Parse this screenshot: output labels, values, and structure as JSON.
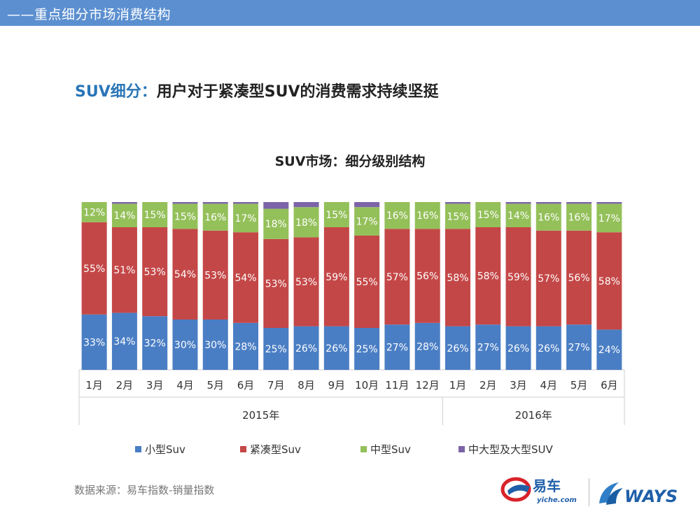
{
  "header": {
    "title": "——重点细分市场消费结构"
  },
  "slide": {
    "title_accent": "SUV细分：",
    "title_rest": "用户对于紧凑型SUV的消费需求持续坚挺"
  },
  "source_note": "数据来源：易车指数-销量指数",
  "logos": {
    "yiche_name": "易车",
    "yiche_domain": "yiche.com",
    "ways_name": "WAYS"
  },
  "chart_data": {
    "type": "bar",
    "stacked": true,
    "normalized": true,
    "title": "SUV市场：细分级别结构",
    "categories": [
      "1月",
      "2月",
      "3月",
      "4月",
      "5月",
      "6月",
      "7月",
      "8月",
      "9月",
      "10月",
      "11月",
      "12月",
      "1月",
      "2月",
      "3月",
      "4月",
      "5月",
      "6月"
    ],
    "groups": [
      {
        "label": "2015年",
        "count": 12
      },
      {
        "label": "2016年",
        "count": 6
      }
    ],
    "ylim": [
      0,
      100
    ],
    "series": [
      {
        "name": "小型Suv",
        "color": "#4a7ec4",
        "labeled": true,
        "values": [
          33,
          34,
          32,
          30,
          30,
          28,
          25,
          26,
          26,
          25,
          27,
          28,
          26,
          27,
          26,
          26,
          27,
          24
        ]
      },
      {
        "name": "紧凑型Suv",
        "color": "#c44747",
        "labeled": true,
        "values": [
          55,
          51,
          53,
          54,
          53,
          54,
          53,
          53,
          59,
          55,
          57,
          56,
          58,
          58,
          59,
          57,
          56,
          58
        ]
      },
      {
        "name": "中型Suv",
        "color": "#94c05a",
        "labeled": true,
        "values": [
          12,
          14,
          15,
          15,
          16,
          17,
          18,
          18,
          15,
          17,
          16,
          16,
          15,
          15,
          14,
          16,
          16,
          17
        ]
      },
      {
        "name": "中大型及大型SUV",
        "color": "#7d63a8",
        "labeled": false,
        "values": [
          0,
          1,
          0,
          1,
          1,
          1,
          4,
          3,
          0,
          3,
          0,
          0,
          1,
          0,
          1,
          1,
          1,
          1
        ]
      }
    ],
    "legend_position": "bottom"
  }
}
